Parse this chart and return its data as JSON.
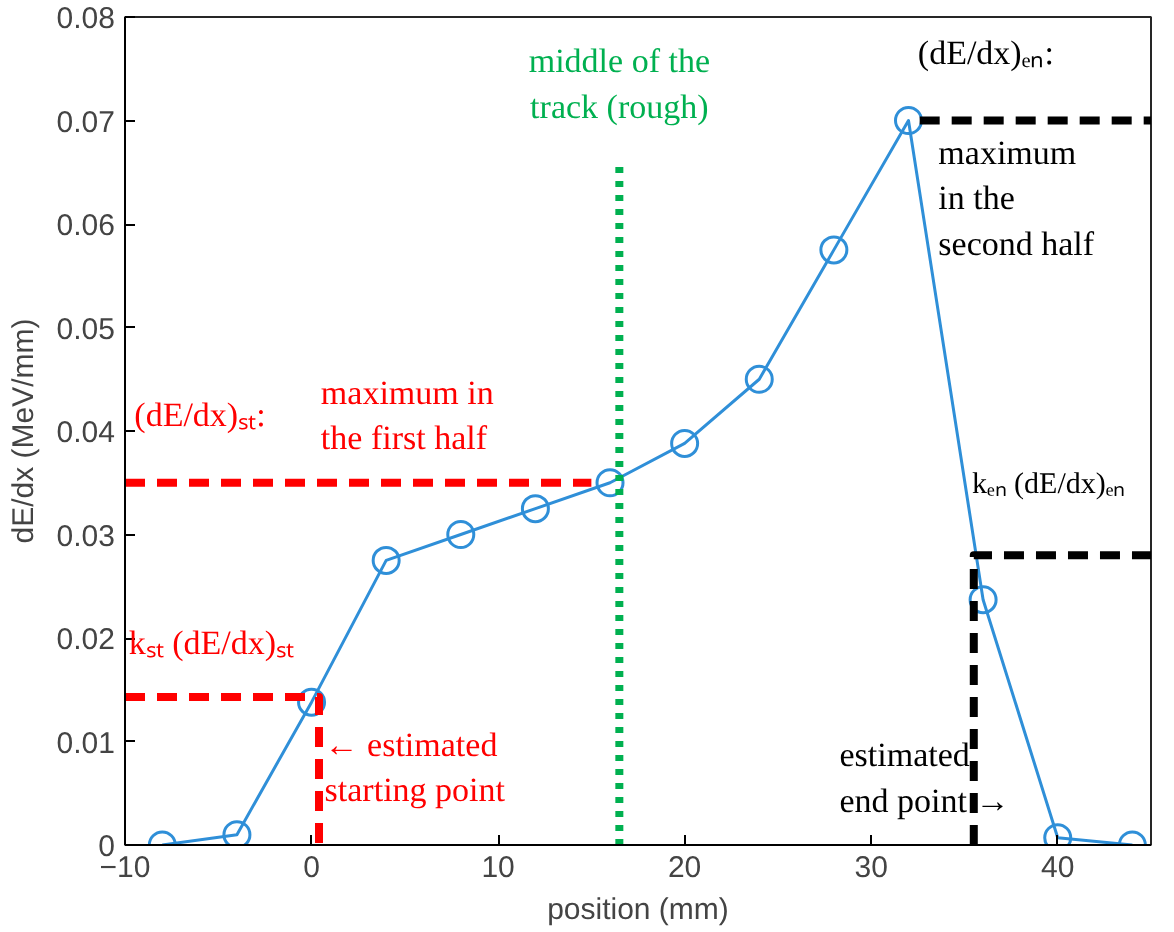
{
  "chart_data": {
    "type": "line",
    "xlabel": "position (mm)",
    "ylabel": "dE/dx (MeV/mm)",
    "xlim": [
      -10,
      45
    ],
    "ylim": [
      0,
      0.08
    ],
    "xticks": [
      -10,
      0,
      10,
      20,
      30,
      40
    ],
    "yticks": [
      0,
      0.01,
      0.02,
      0.03,
      0.04,
      0.05,
      0.06,
      0.07,
      0.08
    ],
    "grid": false,
    "marker": "circle",
    "line_style": "solid",
    "series": [
      {
        "color": "#2f8fd8",
        "x": [
          -8,
          -4,
          0,
          4,
          8,
          12,
          16,
          20,
          24,
          28,
          32,
          36,
          40,
          44
        ],
        "values": [
          0,
          0.001,
          0.0138,
          0.0275,
          0.03,
          0.0325,
          0.035,
          0.0388,
          0.045,
          0.0575,
          0.07,
          0.0237,
          0.0007,
          0
        ]
      },
      {
        "color": "#ff0000",
        "marker": "none",
        "line_style": "dashed",
        "x": [
          -10,
          15
        ],
        "values": [
          0.035,
          0.035
        ]
      },
      {
        "color": "#ff0000",
        "marker": "none",
        "line_style": "dashed",
        "x": [
          -10,
          0.4,
          0.4
        ],
        "values": [
          0.0143,
          0.0143,
          0
        ]
      },
      {
        "color": "#00b050",
        "marker": "none",
        "line_style": "dotted",
        "x": [
          16.5,
          16.5
        ],
        "values": [
          0,
          0.0655
        ]
      },
      {
        "color": "#000000",
        "marker": "none",
        "line_style": "dashed",
        "x": [
          32.6,
          45
        ],
        "values": [
          0.07,
          0.07
        ]
      },
      {
        "color": "#000000",
        "marker": "none",
        "line_style": "dashed",
        "x": [
          35.5,
          35.5,
          45
        ],
        "values": [
          0,
          0.028,
          0.028
        ]
      }
    ],
    "annotations": [
      "middle of the\ntrack (rough)",
      "(dE/dx)ₛₜ:",
      "maximum in\nthe first half",
      "kₛₜ (dE/dx)ₛₜ",
      "← estimated\n    starting point",
      "(dE/dx)ₑₙ:",
      "maximum\nin the\nsecond half",
      "kₑₙ (dE/dx)ₑₙ",
      "estimated\nend point →"
    ]
  }
}
